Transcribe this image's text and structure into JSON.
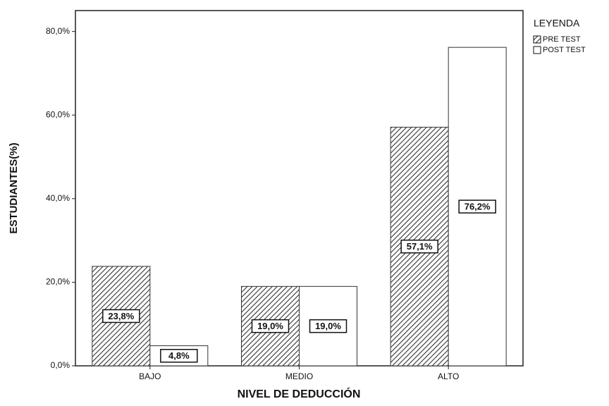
{
  "chart_data": {
    "type": "bar",
    "categories": [
      "BAJO",
      "MEDIO",
      "ALTO"
    ],
    "series": [
      {
        "name": "PRE TEST",
        "color": "#333333",
        "hatch": true,
        "values": [
          23.8,
          19.0,
          57.1
        ],
        "value_labels": [
          "23,8%",
          "19,0%",
          "57,1%"
        ]
      },
      {
        "name": "POST TEST",
        "color": "#ffffff",
        "hatch": false,
        "values": [
          4.8,
          19.0,
          76.2
        ],
        "value_labels": [
          "4,8%",
          "19,0%",
          "76,2%"
        ]
      }
    ],
    "ylim": [
      0,
      85
    ],
    "yticks": [
      {
        "value": 0,
        "label": "0,0%"
      },
      {
        "value": 20,
        "label": "20,0%"
      },
      {
        "value": 40,
        "label": "40,0%"
      },
      {
        "value": 60,
        "label": "60,0%"
      },
      {
        "value": 80,
        "label": "80,0%"
      }
    ],
    "xlabel": "NIVEL DE DEDUCCIÓN",
    "ylabel": "ESTUDIANTES(%)",
    "legend_title": "LEYENDA",
    "legend": "right"
  }
}
